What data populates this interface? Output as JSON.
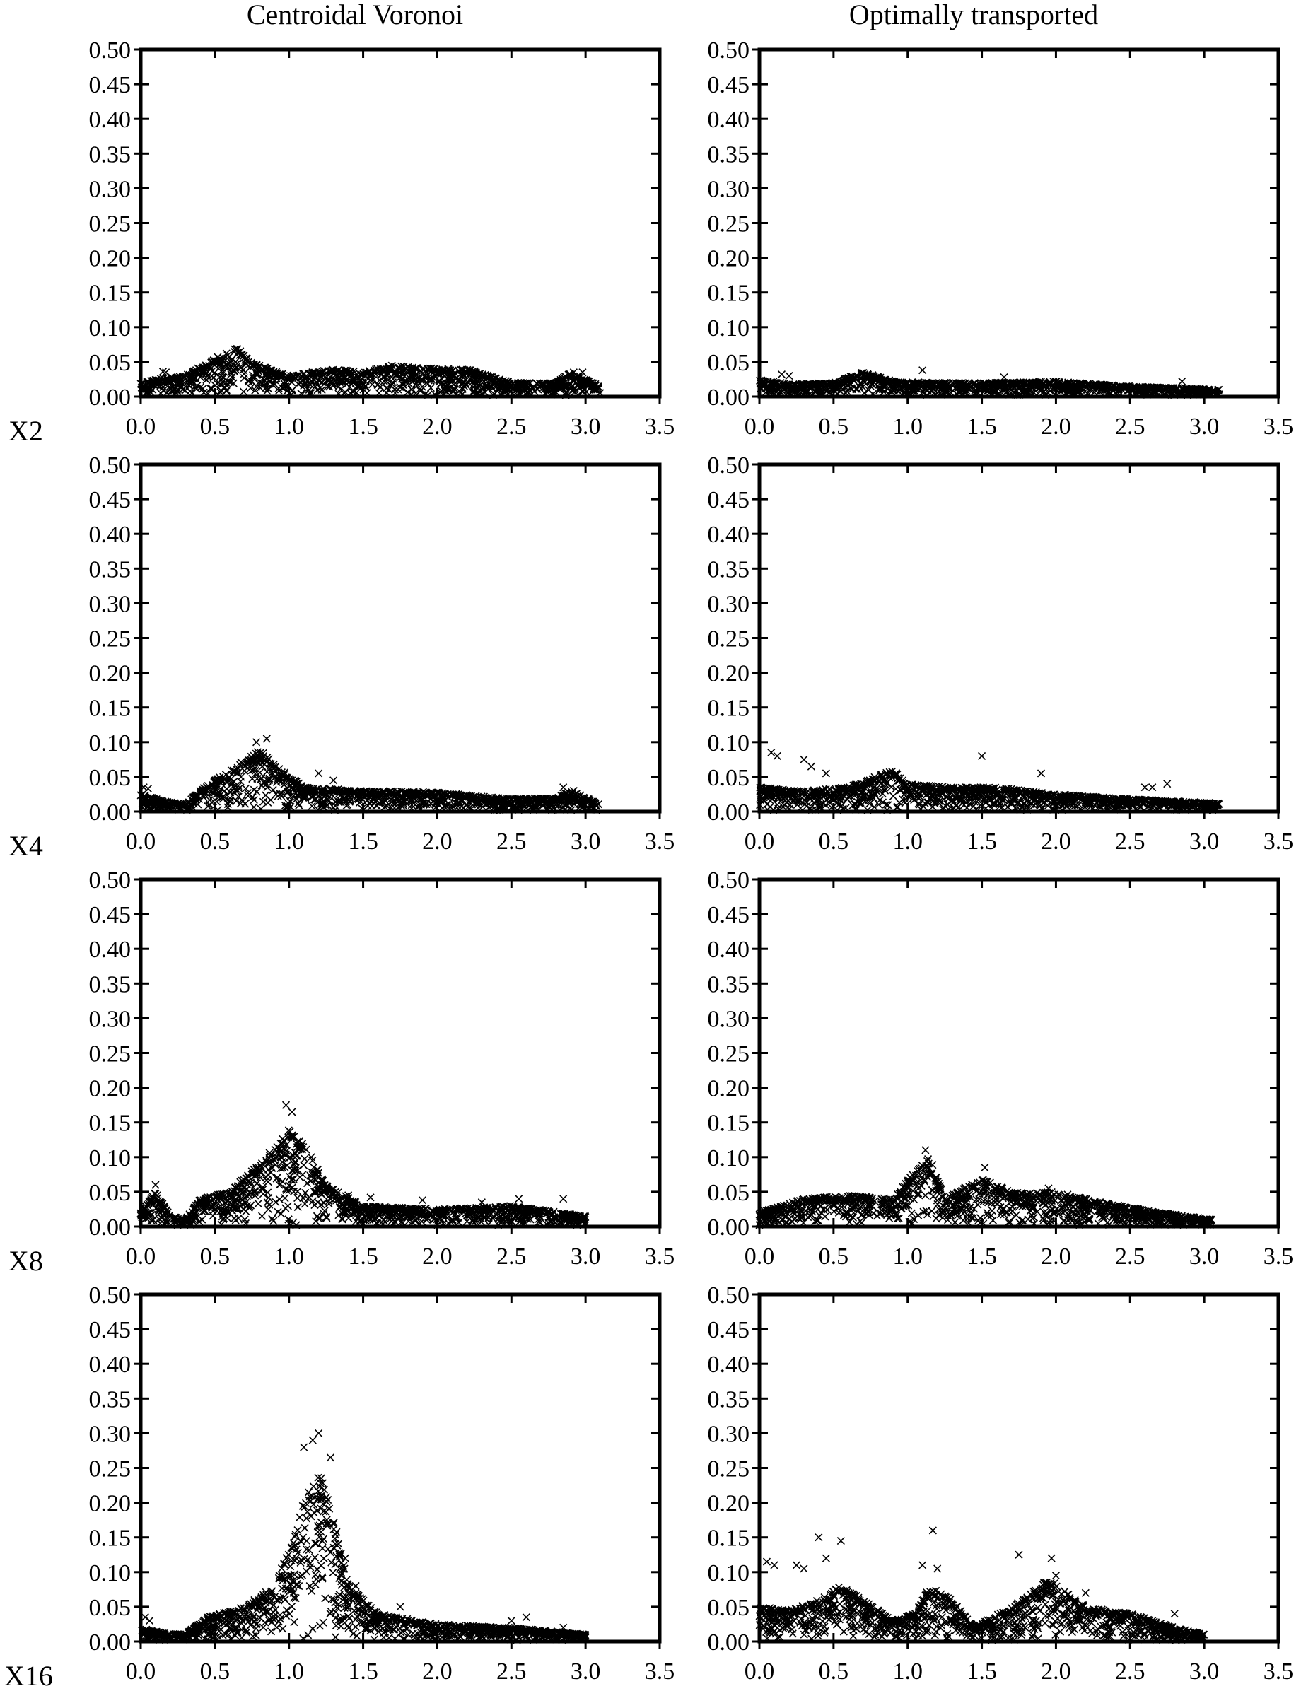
{
  "column_titles": [
    "Centroidal Voronoi",
    "Optimally transported"
  ],
  "row_labels": [
    "X2",
    "X4",
    "X8",
    "X16"
  ],
  "chart_data": [
    {
      "type": "scatter",
      "row": "X2",
      "column": "Centroidal Voronoi",
      "marker": "x",
      "xlim": [
        0,
        3.5
      ],
      "ylim": [
        0,
        0.5
      ],
      "xticks": [
        "0.0",
        "0.5",
        "1.0",
        "1.5",
        "2.0",
        "2.5",
        "3.0",
        "3.5"
      ],
      "yticks": [
        "0.00",
        "0.05",
        "0.10",
        "0.15",
        "0.20",
        "0.25",
        "0.30",
        "0.35",
        "0.40",
        "0.45",
        "0.50"
      ],
      "envelope": [
        [
          0.0,
          0.02
        ],
        [
          0.1,
          0.025
        ],
        [
          0.3,
          0.03
        ],
        [
          0.5,
          0.055
        ],
        [
          0.65,
          0.07
        ],
        [
          0.8,
          0.045
        ],
        [
          1.0,
          0.03
        ],
        [
          1.3,
          0.04
        ],
        [
          1.5,
          0.035
        ],
        [
          1.7,
          0.045
        ],
        [
          2.0,
          0.04
        ],
        [
          2.2,
          0.04
        ],
        [
          2.5,
          0.02
        ],
        [
          2.8,
          0.02
        ],
        [
          2.9,
          0.035
        ],
        [
          3.1,
          0.015
        ]
      ],
      "outliers": [
        [
          0.15,
          0.036
        ],
        [
          0.17,
          0.035
        ],
        [
          2.92,
          0.035
        ],
        [
          2.98,
          0.035
        ]
      ]
    },
    {
      "type": "scatter",
      "row": "X2",
      "column": "Optimally transported",
      "marker": "x",
      "xlim": [
        0,
        3.5
      ],
      "ylim": [
        0,
        0.5
      ],
      "xticks": [
        "0.0",
        "0.5",
        "1.0",
        "1.5",
        "2.0",
        "2.5",
        "3.0",
        "3.5"
      ],
      "yticks": [
        "0.00",
        "0.05",
        "0.10",
        "0.15",
        "0.20",
        "0.25",
        "0.30",
        "0.35",
        "0.40",
        "0.45",
        "0.50"
      ],
      "envelope": [
        [
          0.0,
          0.025
        ],
        [
          0.2,
          0.018
        ],
        [
          0.5,
          0.02
        ],
        [
          0.7,
          0.035
        ],
        [
          0.9,
          0.022
        ],
        [
          1.2,
          0.02
        ],
        [
          1.6,
          0.02
        ],
        [
          2.0,
          0.022
        ],
        [
          2.5,
          0.015
        ],
        [
          3.1,
          0.01
        ]
      ],
      "outliers": [
        [
          0.15,
          0.032
        ],
        [
          0.2,
          0.03
        ],
        [
          1.1,
          0.038
        ],
        [
          1.65,
          0.028
        ],
        [
          2.85,
          0.022
        ]
      ]
    },
    {
      "type": "scatter",
      "row": "X4",
      "column": "Centroidal Voronoi",
      "marker": "x",
      "xlim": [
        0,
        3.5
      ],
      "ylim": [
        0,
        0.5
      ],
      "xticks": [
        "0.0",
        "0.5",
        "1.0",
        "1.5",
        "2.0",
        "2.5",
        "3.0",
        "3.5"
      ],
      "yticks": [
        "0.00",
        "0.05",
        "0.10",
        "0.15",
        "0.20",
        "0.25",
        "0.30",
        "0.35",
        "0.40",
        "0.45",
        "0.50"
      ],
      "envelope": [
        [
          0.0,
          0.025
        ],
        [
          0.15,
          0.015
        ],
        [
          0.3,
          0.01
        ],
        [
          0.4,
          0.03
        ],
        [
          0.6,
          0.06
        ],
        [
          0.8,
          0.09
        ],
        [
          0.95,
          0.06
        ],
        [
          1.1,
          0.035
        ],
        [
          1.5,
          0.03
        ],
        [
          2.0,
          0.028
        ],
        [
          2.5,
          0.018
        ],
        [
          2.8,
          0.02
        ],
        [
          2.9,
          0.03
        ],
        [
          3.1,
          0.01
        ]
      ],
      "outliers": [
        [
          0.02,
          0.035
        ],
        [
          0.05,
          0.033
        ],
        [
          0.85,
          0.105
        ],
        [
          0.78,
          0.1
        ],
        [
          1.2,
          0.055
        ],
        [
          1.3,
          0.045
        ],
        [
          2.85,
          0.035
        ],
        [
          2.92,
          0.03
        ]
      ]
    },
    {
      "type": "scatter",
      "row": "X4",
      "column": "Optimally transported",
      "marker": "x",
      "xlim": [
        0,
        3.5
      ],
      "ylim": [
        0,
        0.5
      ],
      "xticks": [
        "0.0",
        "0.5",
        "1.0",
        "1.5",
        "2.0",
        "2.5",
        "3.0",
        "3.5"
      ],
      "yticks": [
        "0.00",
        "0.05",
        "0.10",
        "0.15",
        "0.20",
        "0.25",
        "0.30",
        "0.35",
        "0.40",
        "0.45",
        "0.50"
      ],
      "envelope": [
        [
          0.0,
          0.035
        ],
        [
          0.3,
          0.03
        ],
        [
          0.6,
          0.035
        ],
        [
          0.9,
          0.06
        ],
        [
          1.0,
          0.04
        ],
        [
          1.3,
          0.035
        ],
        [
          1.6,
          0.035
        ],
        [
          2.0,
          0.025
        ],
        [
          2.5,
          0.018
        ],
        [
          3.1,
          0.012
        ]
      ],
      "outliers": [
        [
          0.08,
          0.085
        ],
        [
          0.12,
          0.08
        ],
        [
          0.3,
          0.075
        ],
        [
          0.35,
          0.065
        ],
        [
          0.45,
          0.055
        ],
        [
          1.5,
          0.08
        ],
        [
          1.9,
          0.055
        ],
        [
          2.6,
          0.035
        ],
        [
          2.65,
          0.035
        ],
        [
          2.75,
          0.04
        ]
      ]
    },
    {
      "type": "scatter",
      "row": "X8",
      "column": "Centroidal Voronoi",
      "marker": "x",
      "xlim": [
        0,
        3.5
      ],
      "ylim": [
        0,
        0.5
      ],
      "xticks": [
        "0.0",
        "0.5",
        "1.0",
        "1.5",
        "2.0",
        "2.5",
        "3.0",
        "3.5"
      ],
      "yticks": [
        "0.00",
        "0.05",
        "0.10",
        "0.15",
        "0.20",
        "0.25",
        "0.30",
        "0.35",
        "0.40",
        "0.45",
        "0.50"
      ],
      "envelope": [
        [
          0.0,
          0.02
        ],
        [
          0.1,
          0.05
        ],
        [
          0.2,
          0.015
        ],
        [
          0.3,
          0.01
        ],
        [
          0.4,
          0.04
        ],
        [
          0.6,
          0.05
        ],
        [
          0.8,
          0.09
        ],
        [
          1.0,
          0.14
        ],
        [
          1.1,
          0.12
        ],
        [
          1.25,
          0.06
        ],
        [
          1.5,
          0.03
        ],
        [
          2.0,
          0.025
        ],
        [
          2.5,
          0.03
        ],
        [
          3.0,
          0.015
        ]
      ],
      "outliers": [
        [
          0.1,
          0.06
        ],
        [
          0.98,
          0.175
        ],
        [
          1.02,
          0.165
        ],
        [
          1.15,
          0.1
        ],
        [
          1.4,
          0.045
        ],
        [
          1.55,
          0.042
        ],
        [
          1.9,
          0.038
        ],
        [
          2.3,
          0.035
        ],
        [
          2.55,
          0.04
        ],
        [
          2.85,
          0.04
        ]
      ]
    },
    {
      "type": "scatter",
      "row": "X8",
      "column": "Optimally transported",
      "marker": "x",
      "xlim": [
        0,
        3.5
      ],
      "ylim": [
        0,
        0.5
      ],
      "xticks": [
        "0.0",
        "0.5",
        "1.0",
        "1.5",
        "2.0",
        "2.5",
        "3.0",
        "3.5"
      ],
      "yticks": [
        "0.00",
        "0.05",
        "0.10",
        "0.15",
        "0.20",
        "0.25",
        "0.30",
        "0.35",
        "0.40",
        "0.45",
        "0.50"
      ],
      "envelope": [
        [
          0.0,
          0.02
        ],
        [
          0.3,
          0.04
        ],
        [
          0.6,
          0.045
        ],
        [
          0.9,
          0.04
        ],
        [
          1.05,
          0.08
        ],
        [
          1.15,
          0.1
        ],
        [
          1.25,
          0.04
        ],
        [
          1.5,
          0.07
        ],
        [
          1.7,
          0.05
        ],
        [
          2.0,
          0.05
        ],
        [
          2.3,
          0.035
        ],
        [
          2.7,
          0.02
        ],
        [
          3.05,
          0.01
        ]
      ],
      "outliers": [
        [
          1.12,
          0.11
        ],
        [
          1.52,
          0.085
        ],
        [
          1.95,
          0.055
        ]
      ]
    },
    {
      "type": "scatter",
      "row": "X16",
      "column": "Centroidal Voronoi",
      "marker": "x",
      "xlim": [
        0,
        3.5
      ],
      "ylim": [
        0,
        0.5
      ],
      "xticks": [
        "0.0",
        "0.5",
        "1.0",
        "1.5",
        "2.0",
        "2.5",
        "3.0",
        "3.5"
      ],
      "yticks": [
        "0.00",
        "0.05",
        "0.10",
        "0.15",
        "0.20",
        "0.25",
        "0.30",
        "0.35",
        "0.40",
        "0.45",
        "0.50"
      ],
      "envelope": [
        [
          0.0,
          0.02
        ],
        [
          0.15,
          0.012
        ],
        [
          0.3,
          0.01
        ],
        [
          0.45,
          0.035
        ],
        [
          0.7,
          0.05
        ],
        [
          0.9,
          0.08
        ],
        [
          1.0,
          0.13
        ],
        [
          1.1,
          0.2
        ],
        [
          1.2,
          0.25
        ],
        [
          1.3,
          0.18
        ],
        [
          1.4,
          0.08
        ],
        [
          1.6,
          0.04
        ],
        [
          2.0,
          0.025
        ],
        [
          2.5,
          0.02
        ],
        [
          3.0,
          0.01
        ]
      ],
      "outliers": [
        [
          0.03,
          0.035
        ],
        [
          0.06,
          0.03
        ],
        [
          1.2,
          0.3
        ],
        [
          1.16,
          0.29
        ],
        [
          1.1,
          0.28
        ],
        [
          1.28,
          0.265
        ],
        [
          1.22,
          0.21
        ],
        [
          1.38,
          0.12
        ],
        [
          1.45,
          0.08
        ],
        [
          1.75,
          0.05
        ],
        [
          2.5,
          0.03
        ],
        [
          2.6,
          0.035
        ],
        [
          2.85,
          0.02
        ]
      ]
    },
    {
      "type": "scatter",
      "row": "X16",
      "column": "Optimally transported",
      "marker": "x",
      "xlim": [
        0,
        3.5
      ],
      "ylim": [
        0,
        0.5
      ],
      "xticks": [
        "0.0",
        "0.5",
        "1.0",
        "1.5",
        "2.0",
        "2.5",
        "3.0",
        "3.5"
      ],
      "yticks": [
        "0.00",
        "0.05",
        "0.10",
        "0.15",
        "0.20",
        "0.25",
        "0.30",
        "0.35",
        "0.40",
        "0.45",
        "0.50"
      ],
      "envelope": [
        [
          0.0,
          0.05
        ],
        [
          0.2,
          0.045
        ],
        [
          0.4,
          0.06
        ],
        [
          0.55,
          0.08
        ],
        [
          0.7,
          0.06
        ],
        [
          0.9,
          0.03
        ],
        [
          1.05,
          0.04
        ],
        [
          1.15,
          0.08
        ],
        [
          1.3,
          0.06
        ],
        [
          1.45,
          0.02
        ],
        [
          1.7,
          0.05
        ],
        [
          1.95,
          0.09
        ],
        [
          2.2,
          0.05
        ],
        [
          2.5,
          0.04
        ],
        [
          2.8,
          0.02
        ],
        [
          3.0,
          0.01
        ]
      ],
      "outliers": [
        [
          0.05,
          0.115
        ],
        [
          0.1,
          0.11
        ],
        [
          0.25,
          0.11
        ],
        [
          0.3,
          0.105
        ],
        [
          0.4,
          0.15
        ],
        [
          0.55,
          0.145
        ],
        [
          0.45,
          0.12
        ],
        [
          1.17,
          0.16
        ],
        [
          1.1,
          0.11
        ],
        [
          1.2,
          0.105
        ],
        [
          1.75,
          0.125
        ],
        [
          1.97,
          0.12
        ],
        [
          2.0,
          0.095
        ],
        [
          2.2,
          0.07
        ],
        [
          2.8,
          0.04
        ]
      ]
    }
  ]
}
